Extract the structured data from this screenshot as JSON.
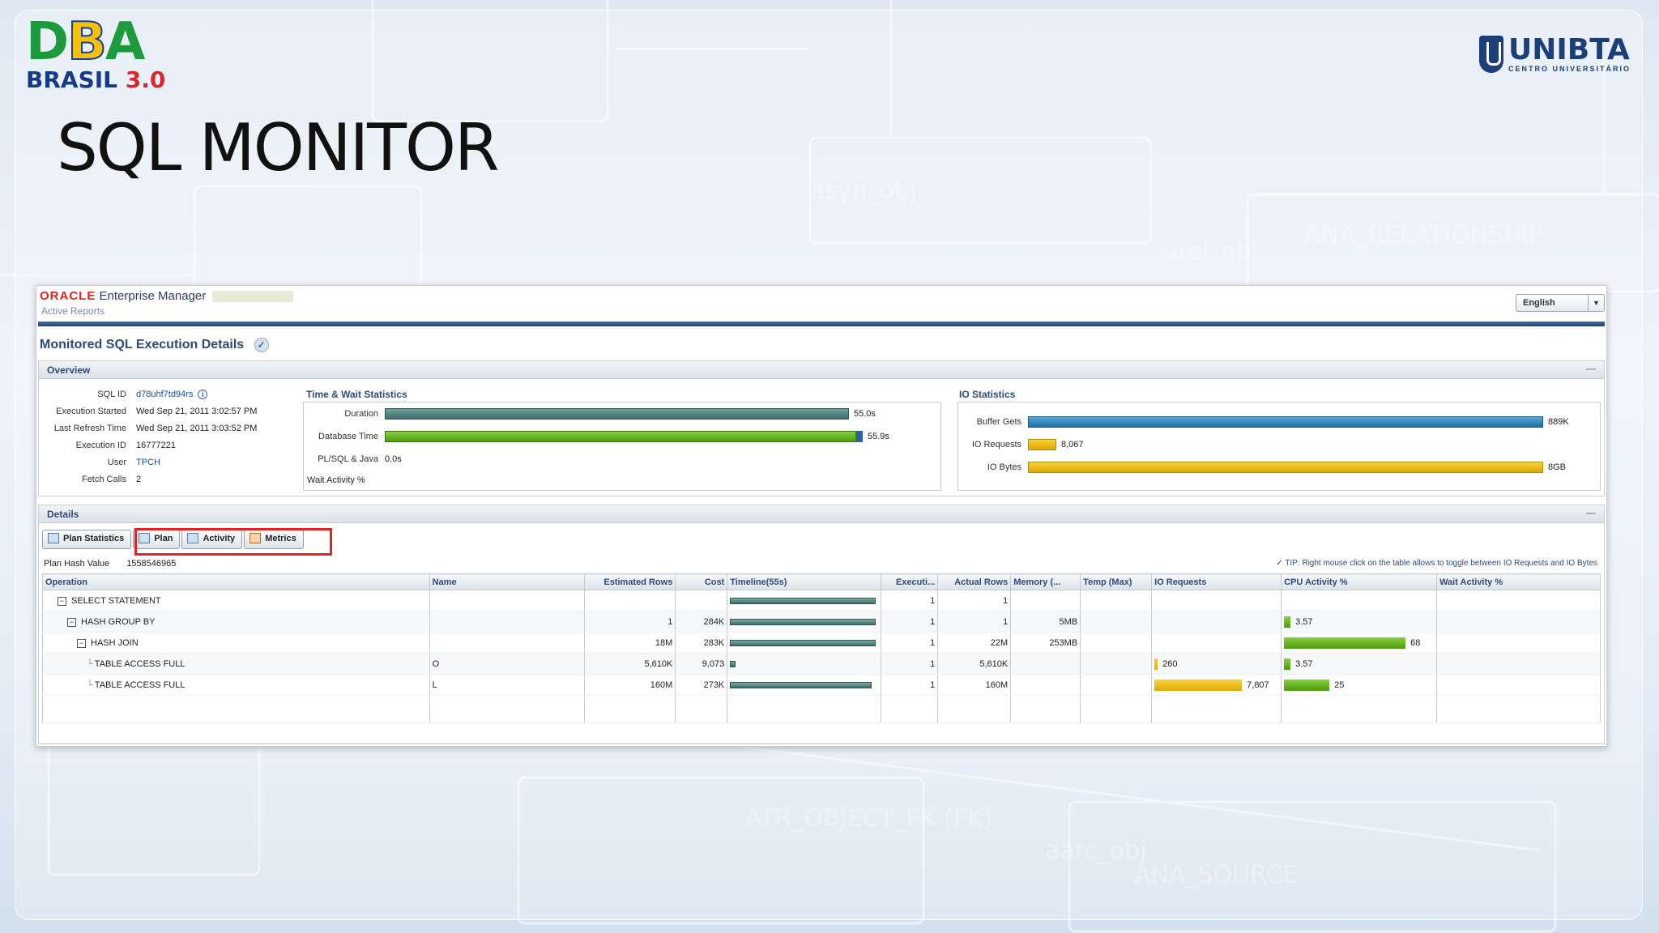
{
  "slide": {
    "title": "SQL MONITOR",
    "logo_left": {
      "line1_letters": [
        "D",
        "B",
        "A"
      ],
      "line2": "BRASIL",
      "version": "3.0"
    },
    "logo_right": {
      "name": "UNIBTA",
      "subtitle": "CENTRO UNIVERSITÁRIO"
    }
  },
  "em": {
    "brand_oracle": "ORACLE",
    "brand_product": "Enterprise Manager",
    "subtitle": "Active Reports",
    "language": "English",
    "page_title": "Monitored SQL Execution Details",
    "overview": {
      "title": "Overview",
      "fields": [
        {
          "label": "SQL ID",
          "value": "d78uhf7td94rs"
        },
        {
          "label": "Execution Started",
          "value": "Wed Sep 21, 2011 3:02:57 PM"
        },
        {
          "label": "Last Refresh Time",
          "value": "Wed Sep 21, 2011 3:03:52 PM"
        },
        {
          "label": "Execution ID",
          "value": "16777221"
        },
        {
          "label": "User",
          "value": "TPCH"
        },
        {
          "label": "Fetch Calls",
          "value": "2"
        }
      ],
      "time_wait": {
        "title": "Time & Wait Statistics",
        "rows": [
          {
            "label": "Duration",
            "value": "55.0s",
            "fraction": 0.985
          },
          {
            "label": "Database Time",
            "value": "55.9s",
            "fraction": 1.0
          },
          {
            "label": "PL/SQL & Java",
            "value": "0.0s",
            "fraction": 0
          },
          {
            "label": "Wait Activity %",
            "value": "",
            "fraction": 0
          }
        ]
      },
      "io": {
        "title": "IO Statistics",
        "rows": [
          {
            "label": "Buffer Gets",
            "value": "889K",
            "fraction": 1.0,
            "color": "#1f6ea5"
          },
          {
            "label": "IO Requests",
            "value": "8,067",
            "fraction": 0.055,
            "color": "#e0a800"
          },
          {
            "label": "IO Bytes",
            "value": "8GB",
            "fraction": 1.0,
            "color": "#e0a800"
          }
        ]
      }
    },
    "details": {
      "title": "Details",
      "tabs": [
        "Plan Statistics",
        "Plan",
        "Activity",
        "Metrics"
      ],
      "plan_hash_label": "Plan Hash Value",
      "plan_hash_value": "1558546965",
      "tip": "TIP: Right mouse click on the table allows to toggle between IO Requests and IO Bytes",
      "columns": [
        "Operation",
        "Name",
        "Estimated Rows",
        "Cost",
        "Timeline(55s)",
        "Executi...",
        "Actual Rows",
        "Memory (...",
        "Temp (Max)",
        "IO Requests",
        "CPU Activity %",
        "Wait Activity %"
      ],
      "rows": [
        {
          "op": "SELECT STATEMENT",
          "indent": 0,
          "tree": "⊟",
          "name": "",
          "est": "",
          "cost": "",
          "timeline": 1.0,
          "exec": "1",
          "actual": "1",
          "mem": "",
          "temp": "",
          "io": "",
          "io_frac": 0,
          "cpu": "",
          "cpu_frac": 0,
          "wait": ""
        },
        {
          "op": "HASH GROUP BY",
          "indent": 1,
          "tree": "⊟",
          "name": "",
          "est": "1",
          "cost": "284K",
          "timeline": 1.0,
          "exec": "1",
          "actual": "1",
          "mem": "5MB",
          "temp": "",
          "io": "",
          "io_frac": 0,
          "cpu": "3.57",
          "cpu_frac": 0.053,
          "wait": ""
        },
        {
          "op": "HASH JOIN",
          "indent": 2,
          "tree": "⊟",
          "name": "",
          "est": "18M",
          "cost": "283K",
          "timeline": 1.0,
          "exec": "1",
          "actual": "22M",
          "mem": "253MB",
          "temp": "",
          "io": "",
          "io_frac": 0,
          "cpu": "68",
          "cpu_frac": 1.0,
          "wait": ""
        },
        {
          "op": "TABLE ACCESS FULL",
          "indent": 3,
          "tree": "",
          "name": "O",
          "est": "5,610K",
          "cost": "9,073",
          "timeline": 0.04,
          "exec": "1",
          "actual": "5,610K",
          "mem": "",
          "temp": "",
          "io": "260",
          "io_frac": 0.033,
          "cpu": "3.57",
          "cpu_frac": 0.053,
          "wait": ""
        },
        {
          "op": "TABLE ACCESS FULL",
          "indent": 3,
          "tree": "",
          "name": "L",
          "est": "160M",
          "cost": "273K",
          "timeline": 0.97,
          "exec": "1",
          "actual": "160M",
          "mem": "",
          "temp": "",
          "io": "7,807",
          "io_frac": 1.0,
          "cpu": "25",
          "cpu_frac": 0.37,
          "wait": ""
        }
      ]
    }
  }
}
